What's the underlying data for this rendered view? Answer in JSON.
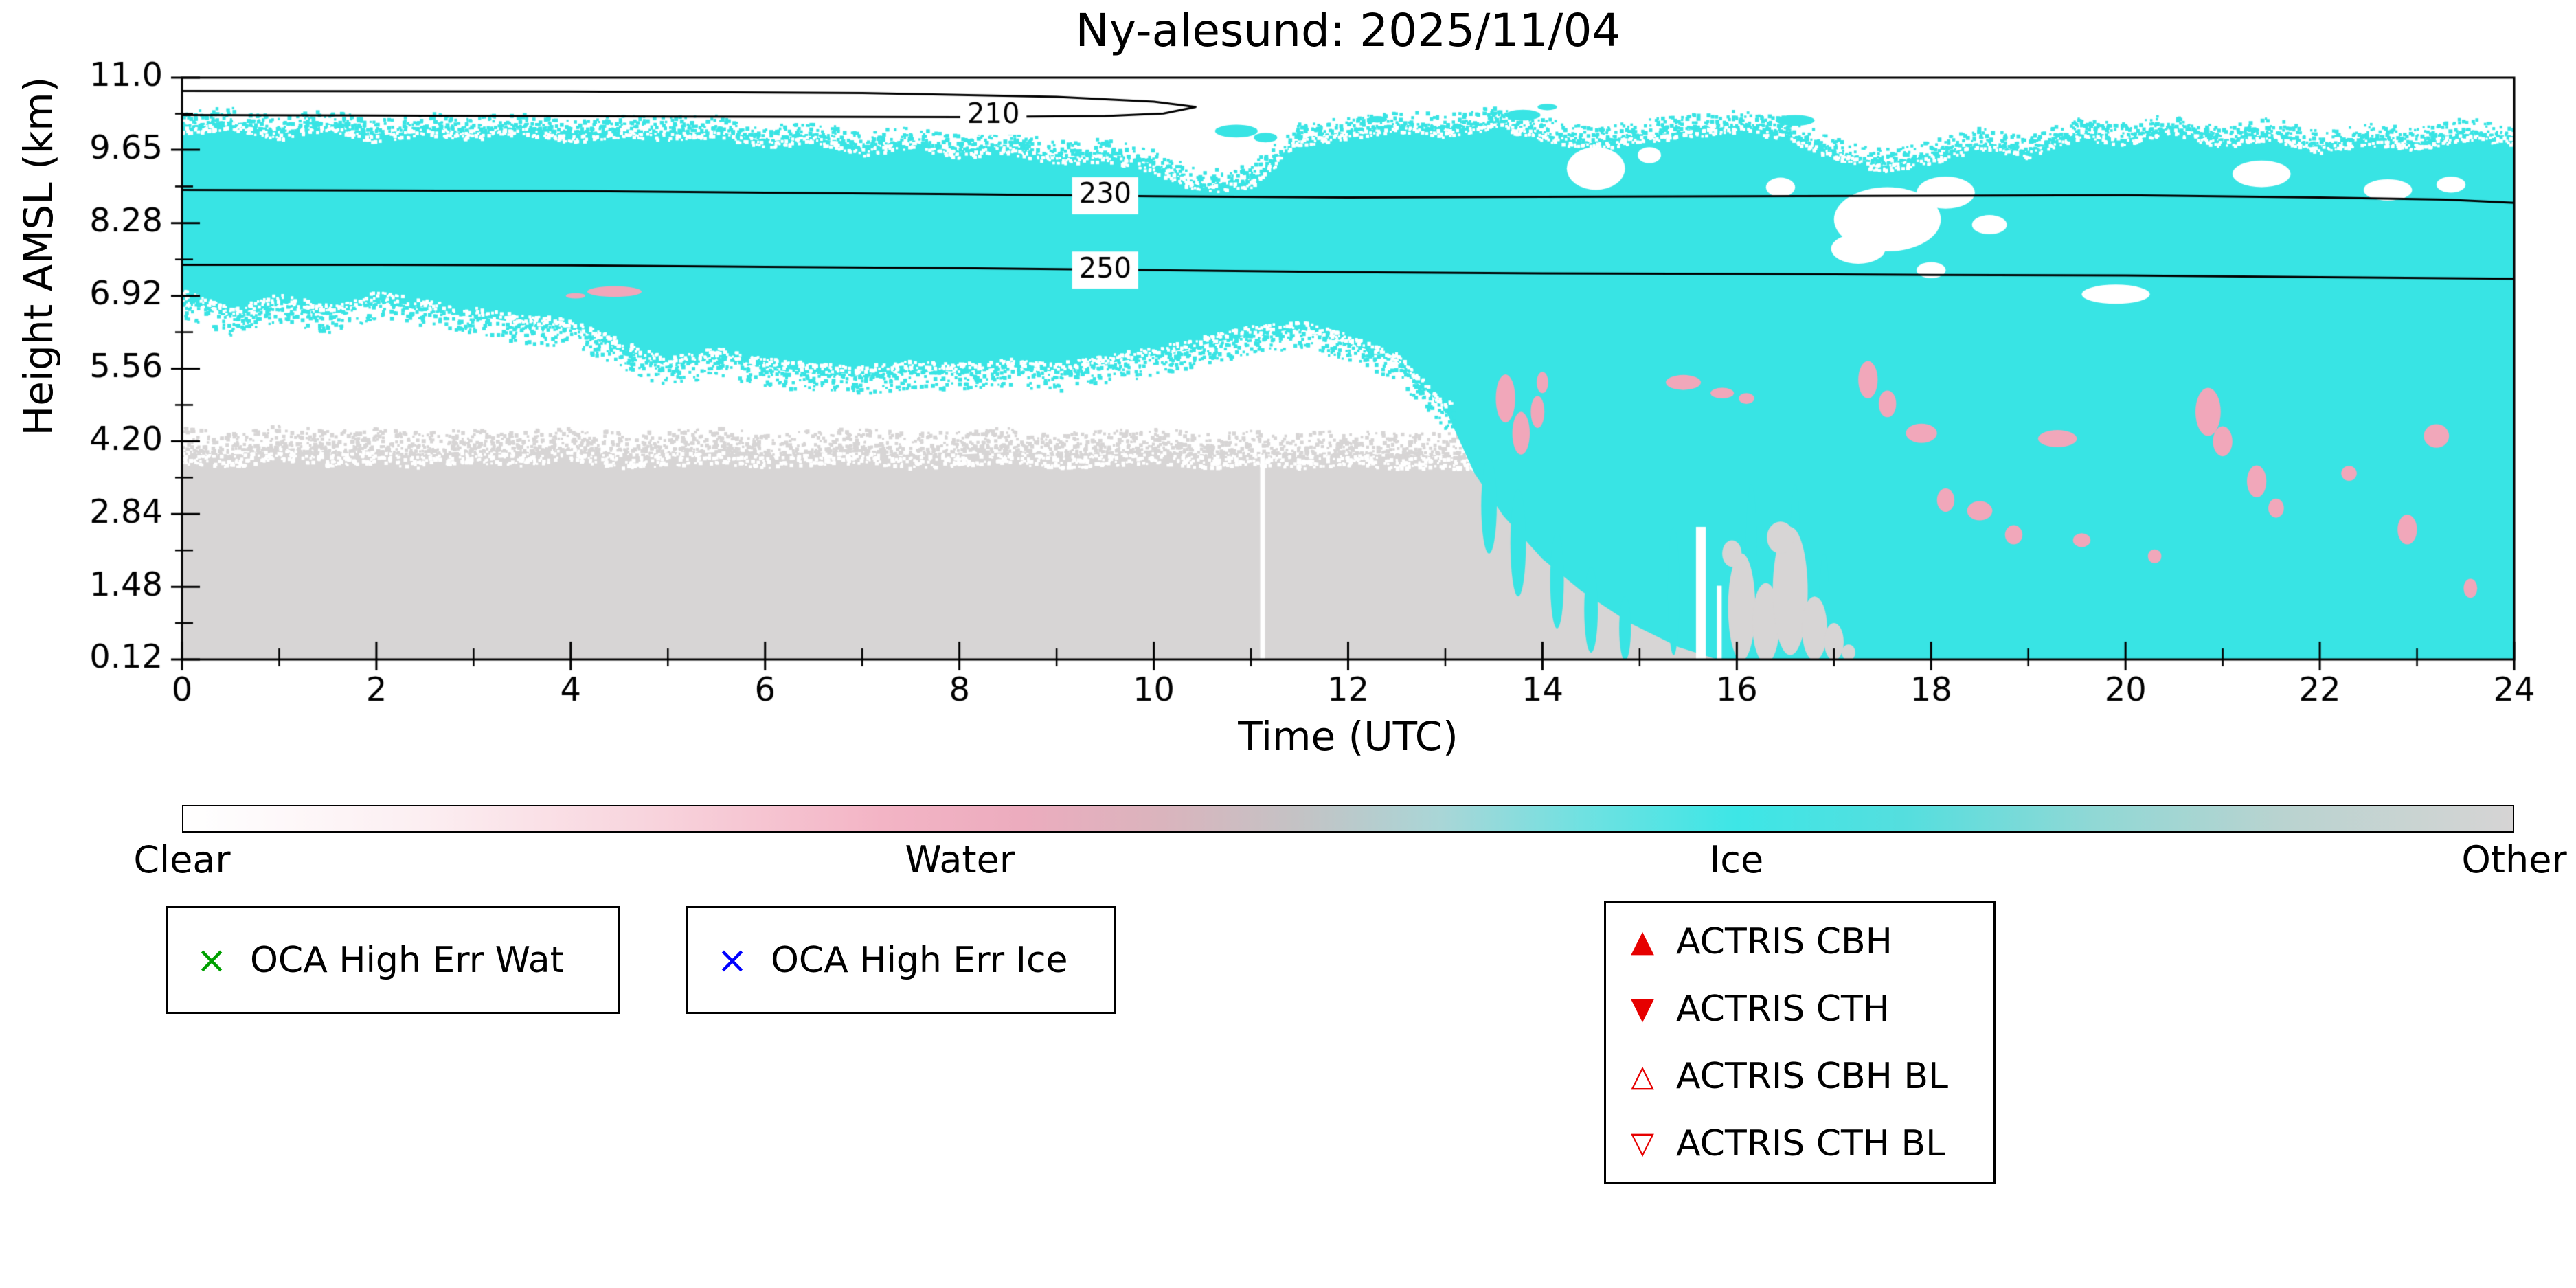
{
  "chart_data": {
    "type": "heatmap",
    "title": "Ny-alesund: 2025/11/04",
    "xlabel": "Time (UTC)",
    "ylabel": "Height AMSL (km)",
    "xlim": [
      0,
      24
    ],
    "ylim": [
      0.12,
      11.0
    ],
    "xticks_major": [
      0,
      2,
      4,
      6,
      8,
      10,
      12,
      14,
      16,
      18,
      20,
      22,
      24
    ],
    "xticks_minor": [
      1,
      3,
      5,
      7,
      9,
      11,
      13,
      15,
      17,
      19,
      21,
      23
    ],
    "yticks": [
      0.12,
      1.48,
      2.84,
      4.2,
      5.56,
      6.92,
      8.28,
      9.65,
      11.0
    ],
    "ytick_labels": [
      "0.12",
      "1.48",
      "2.84",
      "4.20",
      "5.56",
      "6.92",
      "8.28",
      "9.65",
      "11.0"
    ],
    "classes": [
      "Clear",
      "Water",
      "Ice",
      "Other"
    ],
    "colors": {
      "clear": "#ffffff",
      "water": "#f1a7ba",
      "ice": "#38e4e4",
      "other": "#d7d5d5",
      "contour": "#000000"
    },
    "ice_band": {
      "top_t": [
        0,
        0.5,
        1,
        1.5,
        2,
        2.5,
        3,
        3.5,
        4,
        4.5,
        5,
        5.5,
        6,
        6.5,
        7,
        7.5,
        8,
        8.5,
        9,
        9.5,
        10,
        10.5,
        11,
        11.5,
        12,
        12.5,
        13,
        13.5,
        14,
        14.5,
        15,
        15.5,
        16,
        16.5,
        17,
        17.5,
        18,
        18.5,
        19,
        19.5,
        20,
        20.5,
        21,
        21.5,
        22,
        22.5,
        23,
        23.5,
        24
      ],
      "top_v": [
        10.05,
        10.15,
        9.95,
        10.1,
        9.9,
        10.05,
        9.95,
        10.05,
        9.9,
        10.0,
        9.95,
        10.0,
        9.8,
        9.9,
        9.65,
        9.8,
        9.6,
        9.7,
        9.5,
        9.55,
        9.35,
        8.95,
        9.05,
        9.85,
        9.95,
        10.1,
        10.0,
        10.15,
        9.95,
        9.75,
        9.9,
        10.0,
        10.1,
        9.95,
        9.6,
        9.35,
        9.5,
        9.75,
        9.6,
        9.95,
        9.85,
        10.05,
        9.8,
        9.95,
        9.7,
        9.85,
        9.75,
        9.95,
        9.85
      ],
      "bottom_t": [
        0,
        0.5,
        1,
        1.5,
        2,
        2.5,
        3,
        3.5,
        4,
        4.5,
        5,
        5.5,
        6,
        6.5,
        7,
        7.5,
        8,
        8.5,
        9,
        9.5,
        10,
        10.5,
        11,
        11.5,
        12,
        12.5,
        13
      ],
      "bottom_v": [
        6.9,
        6.55,
        6.8,
        6.6,
        6.85,
        6.7,
        6.55,
        6.4,
        6.35,
        5.95,
        5.6,
        5.8,
        5.6,
        5.5,
        5.45,
        5.55,
        5.5,
        5.6,
        5.5,
        5.65,
        5.8,
        6.0,
        6.2,
        6.3,
        6.05,
        5.7,
        4.8
      ],
      "wedge": [
        [
          13,
          4.8
        ],
        [
          13.3,
          3.6
        ],
        [
          13.6,
          2.8
        ],
        [
          14,
          2.0
        ],
        [
          14.4,
          1.4
        ],
        [
          14.9,
          0.8
        ],
        [
          15.4,
          0.35
        ],
        [
          15.8,
          0.12
        ]
      ]
    },
    "gray_region": {
      "t": [
        0,
        0.5,
        1,
        1.5,
        2,
        2.5,
        3,
        3.5,
        4,
        4.5,
        5,
        5.5,
        6,
        6.5,
        7,
        7.5,
        8,
        8.5,
        9,
        9.5,
        10,
        10.5,
        11,
        11.5,
        12,
        12.5,
        13,
        13.5,
        14,
        14.5,
        15,
        15.5,
        16,
        16.5,
        17,
        17.1
      ],
      "top": [
        4.0,
        3.9,
        4.05,
        3.95,
        4.0,
        3.9,
        4.0,
        3.95,
        4.05,
        3.9,
        3.95,
        4.0,
        3.9,
        3.95,
        4.0,
        3.9,
        3.95,
        4.0,
        3.9,
        3.95,
        4.0,
        3.9,
        3.95,
        3.9,
        3.95,
        3.9,
        3.9,
        3.85,
        3.75,
        3.6,
        3.4,
        3.1,
        2.8,
        2.4,
        0.9,
        0.12
      ]
    },
    "white_columns": [
      [
        11.12,
        0.12,
        3.95,
        0.05
      ],
      [
        15.63,
        0.12,
        2.6,
        0.1
      ],
      [
        15.82,
        0.12,
        1.5,
        0.05
      ]
    ],
    "cyan_fragments": [
      [
        10.85,
        10.0,
        0.22,
        0.12
      ],
      [
        11.15,
        9.88,
        0.12,
        0.09
      ],
      [
        12.3,
        10.22,
        0.1,
        0.06
      ],
      [
        13.8,
        10.3,
        0.18,
        0.1
      ],
      [
        14.05,
        10.45,
        0.1,
        0.06
      ],
      [
        16.6,
        10.2,
        0.2,
        0.1
      ]
    ],
    "cyan_streaks": [
      [
        13.45,
        3.0,
        0.08,
        0.9
      ],
      [
        13.75,
        2.3,
        0.08,
        1.0
      ],
      [
        14.15,
        1.6,
        0.07,
        0.9
      ],
      [
        14.5,
        1.05,
        0.07,
        0.8
      ],
      [
        14.85,
        0.7,
        0.06,
        0.6
      ],
      [
        15.35,
        1.4,
        0.06,
        1.2
      ],
      [
        16.15,
        1.9,
        0.06,
        1.5
      ],
      [
        16.6,
        2.2,
        0.05,
        1.2
      ],
      [
        16.9,
        1.2,
        0.05,
        0.9
      ]
    ],
    "gray_patches": [
      [
        16.05,
        1.1,
        0.14,
        1.0
      ],
      [
        16.3,
        0.8,
        0.14,
        0.75
      ],
      [
        16.55,
        1.4,
        0.18,
        1.2
      ],
      [
        16.8,
        0.7,
        0.13,
        0.6
      ],
      [
        17.0,
        0.45,
        0.1,
        0.35
      ],
      [
        16.45,
        2.4,
        0.14,
        0.3
      ],
      [
        15.95,
        2.1,
        0.1,
        0.25
      ],
      [
        17.15,
        0.25,
        0.07,
        0.15
      ]
    ],
    "white_holes": [
      [
        14.55,
        9.3,
        0.3,
        0.4
      ],
      [
        15.1,
        9.55,
        0.12,
        0.15
      ],
      [
        16.45,
        8.95,
        0.15,
        0.18
      ],
      [
        17.25,
        7.8,
        0.28,
        0.28
      ],
      [
        17.55,
        8.35,
        0.55,
        0.6
      ],
      [
        18.0,
        7.4,
        0.15,
        0.15
      ],
      [
        18.15,
        8.85,
        0.3,
        0.3
      ],
      [
        18.6,
        8.25,
        0.18,
        0.18
      ],
      [
        19.9,
        6.95,
        0.35,
        0.18
      ],
      [
        21.4,
        9.2,
        0.3,
        0.25
      ],
      [
        22.7,
        8.9,
        0.25,
        0.2
      ],
      [
        23.35,
        9.0,
        0.15,
        0.15
      ]
    ],
    "water_blobs": [
      [
        4.45,
        7.0,
        0.28,
        0.1
      ],
      [
        4.05,
        6.92,
        0.1,
        0.05
      ],
      [
        13.62,
        5.0,
        0.1,
        0.45
      ],
      [
        13.78,
        4.35,
        0.09,
        0.4
      ],
      [
        13.95,
        4.75,
        0.07,
        0.3
      ],
      [
        14.0,
        5.3,
        0.06,
        0.2
      ],
      [
        15.45,
        5.3,
        0.18,
        0.14
      ],
      [
        15.85,
        5.1,
        0.12,
        0.1
      ],
      [
        16.1,
        5.0,
        0.08,
        0.1
      ],
      [
        17.35,
        5.35,
        0.1,
        0.35
      ],
      [
        17.55,
        4.9,
        0.09,
        0.25
      ],
      [
        17.9,
        4.35,
        0.16,
        0.18
      ],
      [
        18.15,
        3.1,
        0.09,
        0.22
      ],
      [
        18.5,
        2.9,
        0.13,
        0.18
      ],
      [
        18.85,
        2.45,
        0.09,
        0.18
      ],
      [
        19.3,
        4.25,
        0.2,
        0.16
      ],
      [
        19.55,
        2.35,
        0.09,
        0.13
      ],
      [
        20.3,
        2.05,
        0.07,
        0.13
      ],
      [
        20.85,
        4.75,
        0.13,
        0.45
      ],
      [
        21.0,
        4.2,
        0.1,
        0.28
      ],
      [
        21.35,
        3.45,
        0.1,
        0.3
      ],
      [
        21.55,
        2.95,
        0.08,
        0.18
      ],
      [
        22.3,
        3.6,
        0.08,
        0.14
      ],
      [
        22.9,
        2.55,
        0.1,
        0.28
      ],
      [
        23.2,
        4.3,
        0.13,
        0.22
      ],
      [
        23.55,
        1.45,
        0.07,
        0.18
      ]
    ],
    "contours": [
      {
        "label": "210",
        "label_pos": [
          8.35,
          10.28
        ],
        "points": [
          [
            0,
            10.75
          ],
          [
            4,
            10.74
          ],
          [
            7,
            10.71
          ],
          [
            9,
            10.64
          ],
          [
            10,
            10.55
          ],
          [
            10.43,
            10.45
          ],
          [
            10.1,
            10.33
          ],
          [
            9.5,
            10.28
          ],
          [
            8,
            10.26
          ],
          [
            5,
            10.27
          ],
          [
            2,
            10.29
          ],
          [
            0,
            10.3
          ]
        ]
      },
      {
        "label": "230",
        "label_pos": [
          9.5,
          8.79
        ],
        "points": [
          [
            0,
            8.9
          ],
          [
            2,
            8.89
          ],
          [
            4,
            8.88
          ],
          [
            6,
            8.85
          ],
          [
            8,
            8.82
          ],
          [
            10,
            8.78
          ],
          [
            12,
            8.76
          ],
          [
            14,
            8.77
          ],
          [
            16,
            8.78
          ],
          [
            18,
            8.79
          ],
          [
            20,
            8.8
          ],
          [
            22,
            8.76
          ],
          [
            23.3,
            8.72
          ],
          [
            24,
            8.66
          ]
        ]
      },
      {
        "label": "250",
        "label_pos": [
          9.5,
          7.4
        ],
        "points": [
          [
            0,
            7.5
          ],
          [
            2,
            7.5
          ],
          [
            4,
            7.49
          ],
          [
            6,
            7.46
          ],
          [
            8,
            7.44
          ],
          [
            10,
            7.4
          ],
          [
            12,
            7.36
          ],
          [
            14,
            7.34
          ],
          [
            16,
            7.33
          ],
          [
            18,
            7.31
          ],
          [
            20,
            7.3
          ],
          [
            22,
            7.27
          ],
          [
            24,
            7.24
          ]
        ]
      }
    ],
    "colorbar": {
      "labels": [
        "Clear",
        "Water",
        "Ice",
        "Other"
      ],
      "positions": [
        0,
        0.3335,
        0.6665,
        1
      ],
      "stops": [
        [
          0,
          "#ffffff"
        ],
        [
          0.1,
          "#fceff2"
        ],
        [
          0.2,
          "#f8d4dd"
        ],
        [
          0.3,
          "#f3b4c5"
        ],
        [
          0.36,
          "#ecacbe"
        ],
        [
          0.42,
          "#dab4bd"
        ],
        [
          0.48,
          "#c3c3c5"
        ],
        [
          0.54,
          "#a9d6d7"
        ],
        [
          0.6,
          "#70e1e1"
        ],
        [
          0.667,
          "#3de6e6"
        ],
        [
          0.74,
          "#55dede"
        ],
        [
          0.82,
          "#90d8d5"
        ],
        [
          0.9,
          "#b9d3d0"
        ],
        [
          1,
          "#d6d4d4"
        ]
      ]
    }
  },
  "legends": {
    "oca_wat": {
      "marker": "×",
      "color": "#00a000",
      "label": "OCA High Err Wat"
    },
    "oca_ice": {
      "marker": "×",
      "color": "#0000ff",
      "label": "OCA High Err Ice"
    },
    "actris": {
      "color": "#e60000",
      "items": [
        {
          "marker": "▲",
          "label": "ACTRIS CBH"
        },
        {
          "marker": "▼",
          "label": "ACTRIS CTH"
        },
        {
          "marker": "△",
          "label": "ACTRIS CBH BL"
        },
        {
          "marker": "▽",
          "label": "ACTRIS CTH BL"
        }
      ]
    }
  }
}
